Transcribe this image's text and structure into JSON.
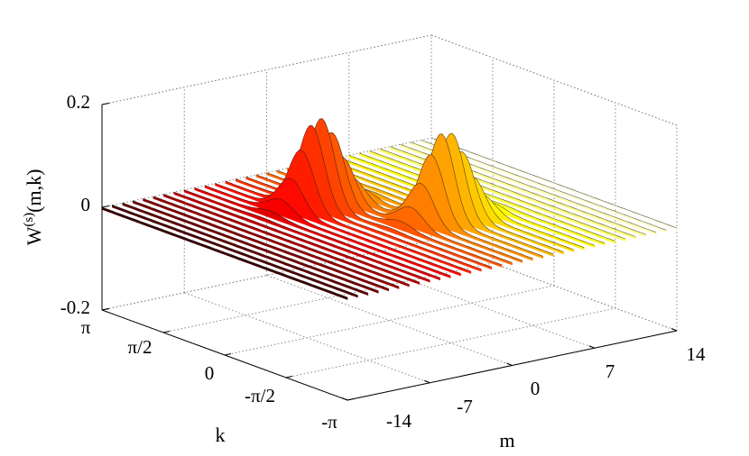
{
  "chart_data": {
    "type": "waterfall-3d",
    "title": "",
    "xlabel": "m",
    "ylabel": "k",
    "zlabel": {
      "base": "W",
      "sup": "(s)",
      "args": "(m,k)"
    },
    "x_range": [
      -14,
      14
    ],
    "y_range": [
      -3.14159,
      3.14159
    ],
    "z_range": [
      -0.2,
      0.2
    ],
    "x_ticks": [
      "-14",
      "-7",
      "0",
      "7",
      "14"
    ],
    "y_ticks": [
      "-π",
      "-π/2",
      "0",
      "π/2",
      "π"
    ],
    "z_ticks": [
      "-0.2",
      "0",
      "0.2"
    ],
    "grid": true,
    "colormap": "hot",
    "n_slices": 33,
    "peaks": [
      {
        "m_center": -2,
        "k_center": 1.2,
        "height": 0.17,
        "m_width": 2.4,
        "k_width": 0.45
      },
      {
        "m_center": 3,
        "k_center": -0.55,
        "height": 0.17,
        "m_width": 2.4,
        "k_width": 0.45
      }
    ]
  }
}
